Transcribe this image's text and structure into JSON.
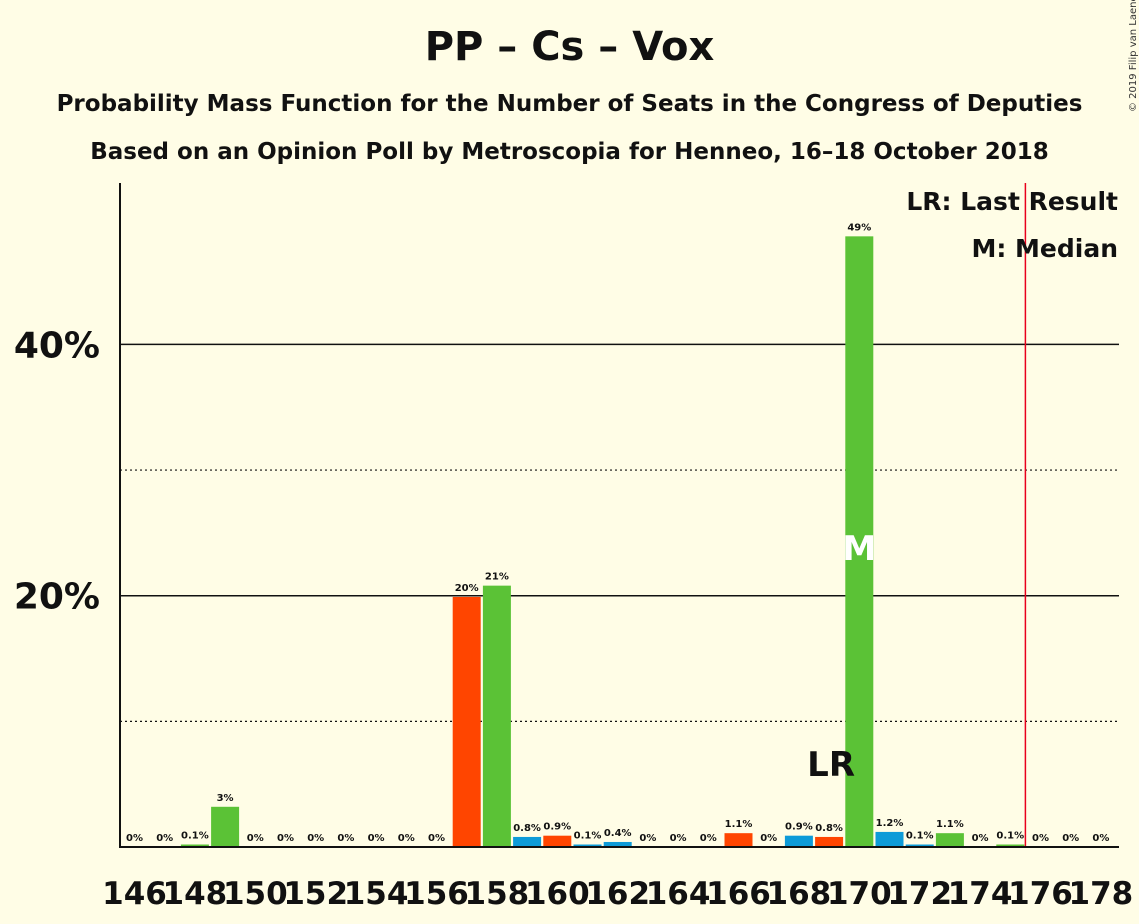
{
  "header": {
    "title": "PP – Cs – Vox",
    "subtitle1": "Probability Mass Function for the Number of Seats in the Congress of Deputies",
    "subtitle2": "Based on an Opinion Poll by Metroscopia for Henneo, 16–18 October 2018",
    "copyright": "© 2019 Filip van Laenen"
  },
  "legend": {
    "lr": "LR: Last Result",
    "m": "M: Median"
  },
  "colors": {
    "background": "#FFFDE6",
    "pp": "#0D9BD8",
    "cs": "#FF4500",
    "vox": "#5BC236",
    "last_result_line": "#E8001C"
  },
  "chart_data": {
    "type": "bar",
    "x": [
      146,
      147,
      148,
      149,
      150,
      151,
      152,
      153,
      154,
      155,
      156,
      157,
      158,
      159,
      160,
      161,
      162,
      163,
      164,
      165,
      166,
      167,
      168,
      169,
      170,
      171,
      172,
      173,
      174,
      175,
      176,
      177,
      178
    ],
    "values": [
      0,
      0,
      0.1,
      3.2,
      0,
      0,
      0,
      0,
      0,
      0,
      0,
      19.9,
      20.8,
      0.8,
      0.9,
      0.1,
      0.4,
      0,
      0,
      0,
      1.1,
      0,
      0.9,
      0.8,
      48.6,
      1.2,
      0.1,
      1.1,
      0,
      0.1,
      0,
      0,
      0
    ],
    "labels": [
      "0%",
      "0%",
      "0.1%",
      "3%",
      "0%",
      "0%",
      "0%",
      "0%",
      "0%",
      "0%",
      "0%",
      "20%",
      "21%",
      "0.8%",
      "0.9%",
      "0.1%",
      "0.4%",
      "0%",
      "0%",
      "0%",
      "1.1%",
      "0%",
      "0.9%",
      "0.8%",
      "49%",
      "1.2%",
      "0.1%",
      "1.1%",
      "0%",
      "0.1%",
      "0%",
      "0%",
      "0%"
    ],
    "bar_colors": [
      "vox",
      "vox",
      "vox",
      "vox",
      "vox",
      "vox",
      "vox",
      "vox",
      "vox",
      "vox",
      "vox",
      "cs",
      "vox",
      "pp",
      "cs",
      "pp",
      "pp",
      "vox",
      "vox",
      "vox",
      "cs",
      "vox",
      "pp",
      "cs",
      "vox",
      "pp",
      "pp",
      "vox",
      "vox",
      "vox",
      "vox",
      "vox",
      "vox"
    ],
    "xtick_labels": [
      "146",
      "148",
      "150",
      "152",
      "154",
      "156",
      "158",
      "160",
      "162",
      "164",
      "166",
      "168",
      "170",
      "172",
      "174",
      "176",
      "178"
    ],
    "ytick_labels": [
      "20%",
      "40%"
    ],
    "ylim": [
      0,
      53
    ],
    "major_gridlines": [
      20,
      40
    ],
    "minor_gridlines": [
      10,
      30
    ],
    "last_result": 169,
    "last_result_label": "LR",
    "median": 170,
    "median_label": "M",
    "majority_line": 176
  }
}
